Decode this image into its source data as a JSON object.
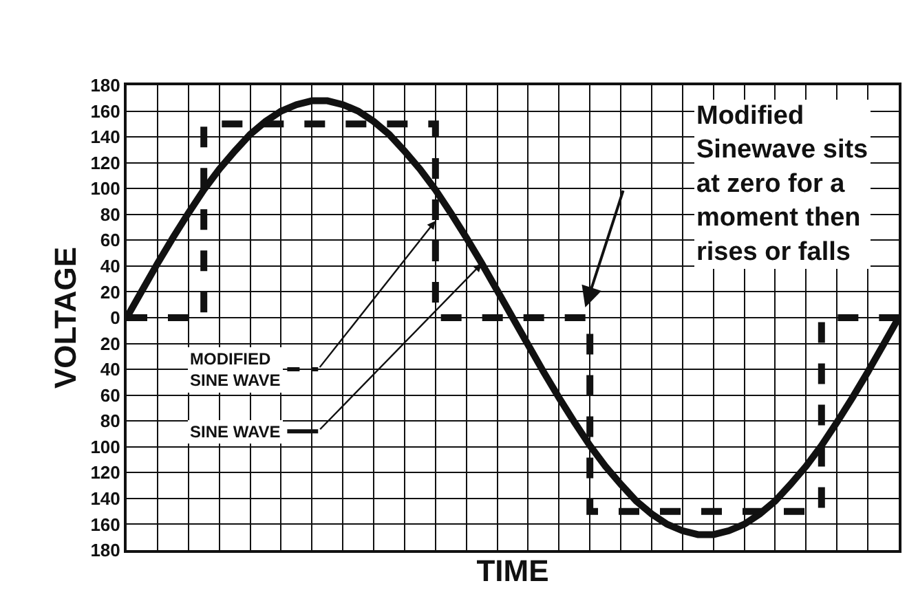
{
  "chart_data": {
    "type": "line",
    "xlabel": "TIME",
    "ylabel": "VOLTAGE",
    "categories": [
      null,
      null,
      null,
      null,
      null,
      null,
      null,
      null,
      null,
      null,
      null,
      null,
      null,
      null,
      null,
      null,
      null,
      null,
      null,
      null,
      null,
      null,
      null,
      null,
      null,
      null,
      null,
      null,
      null,
      null,
      null,
      null,
      null,
      null,
      null,
      null,
      null,
      null,
      null,
      null,
      null,
      null,
      null,
      null,
      null,
      null,
      null,
      null,
      null,
      null,
      null
    ],
    "series": [
      {
        "name": "SINE WAVE",
        "color": "#111111",
        "line_style": "solid",
        "values": [
          0,
          21,
          42,
          62,
          81,
          99,
          115,
          129,
          142,
          152,
          160,
          165,
          168,
          168,
          165,
          160,
          152,
          142,
          129,
          115,
          99,
          81,
          62,
          42,
          21,
          0,
          -21,
          -42,
          -62,
          -81,
          -99,
          -115,
          -129,
          -142,
          -152,
          -160,
          -165,
          -168,
          -168,
          -165,
          -160,
          -152,
          -142,
          -129,
          -115,
          -99,
          -81,
          -62,
          -42,
          -21,
          0
        ]
      },
      {
        "name": "MODIFIED SINE WAVE",
        "type": "step",
        "color": "#111111",
        "line_style": "dashed",
        "values": [
          0,
          0,
          0,
          0,
          0,
          150,
          150,
          150,
          150,
          150,
          150,
          150,
          150,
          150,
          150,
          150,
          150,
          150,
          150,
          150,
          0,
          0,
          0,
          0,
          0,
          0,
          0,
          0,
          0,
          0,
          -150,
          -150,
          -150,
          -150,
          -150,
          -150,
          -150,
          -150,
          -150,
          -150,
          -150,
          -150,
          -150,
          -150,
          -150,
          0,
          0,
          0,
          0,
          0,
          0
        ]
      }
    ],
    "annotations": [
      "Modified\nSinewave sits\nat zero for a\nmoment then\nrises or falls"
    ],
    "ylim": [
      -180,
      180
    ],
    "yticks": [
      {
        "value": -180,
        "label": "180"
      },
      {
        "value": -160,
        "label": "160"
      },
      {
        "value": -140,
        "label": "140"
      },
      {
        "value": -120,
        "label": "120"
      },
      {
        "value": -100,
        "label": "100"
      },
      {
        "value": -80,
        "label": "80"
      },
      {
        "value": -60,
        "label": "60"
      },
      {
        "value": -40,
        "label": "40"
      },
      {
        "value": -20,
        "label": "20"
      },
      0,
      20,
      40,
      60,
      80,
      100,
      120,
      140,
      160,
      180
    ],
    "grid": true,
    "legend": "left",
    "tick_labels": "y",
    "marker": "none"
  }
}
